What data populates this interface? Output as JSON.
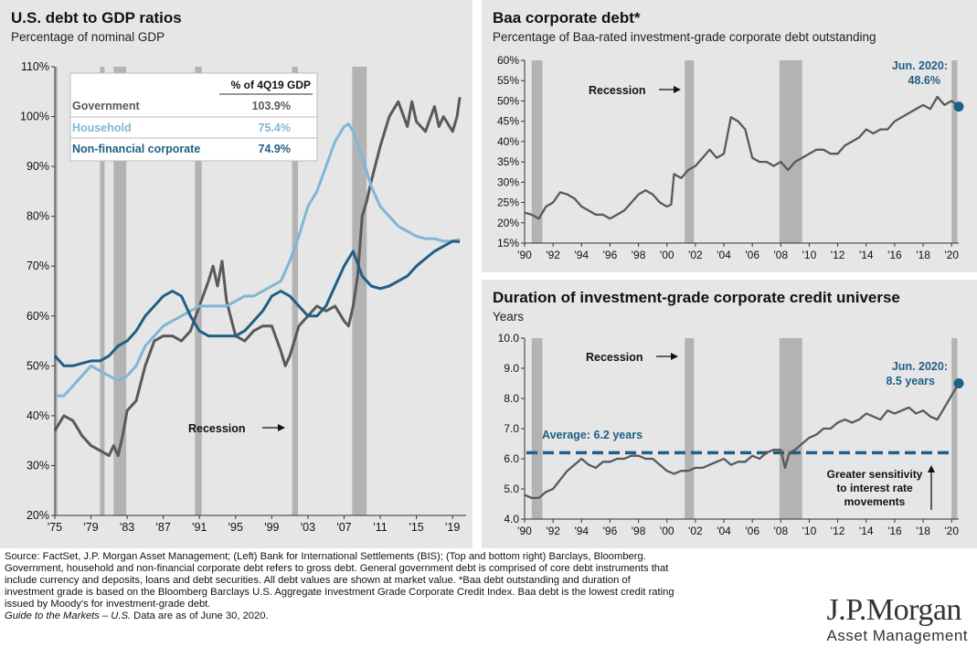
{
  "left": {
    "title": "U.S. debt to GDP ratios",
    "subtitle": "Percentage of nominal GDP",
    "recession_label": "Recession",
    "table": {
      "header": "% of 4Q19 GDP",
      "rows": [
        {
          "label": "Government",
          "value": "103.9%",
          "color": "#595959"
        },
        {
          "label": "Household",
          "value": "75.4%",
          "color": "#7fb7d4"
        },
        {
          "label": "Non-financial corporate",
          "value": "74.9%",
          "color": "#1f5f86"
        }
      ]
    }
  },
  "baa": {
    "title": "Baa corporate debt*",
    "subtitle": "Percentage of Baa-rated investment-grade corporate debt outstanding",
    "recession_label": "Recession",
    "annotation_line1": "Jun. 2020:",
    "annotation_line2": "48.6%"
  },
  "dur": {
    "title": "Duration of investment-grade corporate credit universe",
    "subtitle": "Years",
    "recession_label": "Recession",
    "annotation_line1": "Jun. 2020:",
    "annotation_line2": "8.5 years",
    "average_label": "Average: 6.2 years",
    "sensitivity_line1": "Greater sensitivity",
    "sensitivity_line2": "to interest rate",
    "sensitivity_line3": "movements"
  },
  "footer": {
    "line1": "Source: FactSet, J.P. Morgan Asset Management; (Left) Bank for International Settlements (BIS); (Top and bottom right) Barclays, Bloomberg.",
    "line2": "Government, household and non-financial corporate debt refers to gross debt. General government debt is comprised of core debt instruments that",
    "line3": "include currency and deposits, loans and debt securities. All debt values are shown at market value. *Baa debt outstanding and duration of",
    "line4": "investment grade is based on the Bloomberg Barclays U.S. Aggregate Investment Grade Corporate Credit Index. Baa debt is the lowest credit rating",
    "line5": "issued by Moody's for investment-grade debt.",
    "line6_italic": "Guide to the Markets – U.S.",
    "line6_rest": " Data are as of June 30, 2020."
  },
  "logo": {
    "line1": "J.P.Morgan",
    "line2": "Asset Management"
  },
  "chart_data": [
    {
      "id": "debt_to_gdp",
      "type": "line",
      "title": "U.S. debt to GDP ratios",
      "ylabel": "Percentage of nominal GDP",
      "xlim": [
        1975,
        2020.5
      ],
      "ylim": [
        20,
        110
      ],
      "yticks": [
        20,
        30,
        40,
        50,
        60,
        70,
        80,
        90,
        100,
        110
      ],
      "ytick_labels": [
        "20%",
        "30%",
        "40%",
        "50%",
        "60%",
        "70%",
        "80%",
        "90%",
        "100%",
        "110%"
      ],
      "xticks": [
        1975,
        1979,
        1983,
        1987,
        1991,
        1995,
        1999,
        2003,
        2007,
        2011,
        2015,
        2019
      ],
      "xtick_labels": [
        "'75",
        "'79",
        "'83",
        "'87",
        "'91",
        "'95",
        "'99",
        "'03",
        "'07",
        "'11",
        "'15",
        "'19"
      ],
      "recessions": [
        [
          1975.0,
          1975.25
        ],
        [
          1980.0,
          1980.5
        ],
        [
          1981.5,
          1982.9
        ],
        [
          1990.5,
          1991.25
        ],
        [
          2001.25,
          2001.9
        ],
        [
          2007.9,
          2009.5
        ]
      ],
      "series": [
        {
          "name": "Government",
          "color": "#595959",
          "x": [
            1975,
            1976,
            1977,
            1978,
            1979,
            1980,
            1981,
            1981.5,
            1982,
            1982.5,
            1983,
            1984,
            1985,
            1986,
            1987,
            1988,
            1989,
            1990,
            1991,
            1992,
            1992.5,
            1993,
            1993.5,
            1994,
            1995,
            1996,
            1997,
            1998,
            1999,
            2000,
            2000.5,
            2001,
            2001.5,
            2002,
            2003,
            2004,
            2005,
            2006,
            2007,
            2007.5,
            2008,
            2008.5,
            2009,
            2009.5,
            2010,
            2011,
            2012,
            2013,
            2014,
            2014.5,
            2015,
            2016,
            2017,
            2017.5,
            2018,
            2019,
            2019.5,
            2019.8
          ],
          "y": [
            37,
            40,
            39,
            36,
            34,
            33,
            32,
            34,
            32,
            36,
            41,
            43,
            50,
            55,
            56,
            56,
            55,
            57,
            62,
            67,
            70,
            66,
            71,
            63,
            56,
            55,
            57,
            58,
            58,
            53,
            50,
            52,
            55,
            58,
            60,
            62,
            61,
            62,
            59,
            58,
            62,
            68,
            80,
            83,
            87,
            94,
            100,
            103,
            98,
            103,
            99,
            97,
            102,
            98,
            100,
            97,
            100,
            103.9
          ]
        },
        {
          "name": "Household",
          "color": "#7fb7d4",
          "x": [
            1975,
            1976,
            1977,
            1978,
            1979,
            1980,
            1981,
            1982,
            1983,
            1984,
            1985,
            1986,
            1987,
            1988,
            1989,
            1990,
            1991,
            1992,
            1993,
            1994,
            1995,
            1996,
            1997,
            1998,
            1999,
            2000,
            2001,
            2002,
            2003,
            2004,
            2005,
            2006,
            2007,
            2007.5,
            2008,
            2009,
            2010,
            2011,
            2012,
            2013,
            2014,
            2015,
            2016,
            2017,
            2018,
            2019,
            2019.8
          ],
          "y": [
            44,
            44,
            46,
            48,
            50,
            49,
            48,
            47,
            48,
            50,
            54,
            56,
            58,
            59,
            60,
            61,
            62,
            62,
            62,
            62,
            63,
            64,
            64,
            65,
            66,
            67,
            71,
            76,
            82,
            85,
            90,
            95,
            98,
            98.5,
            97,
            92,
            86,
            82,
            80,
            78,
            77,
            76,
            75.5,
            75.5,
            75,
            75,
            75.4
          ]
        },
        {
          "name": "Non-financial corporate",
          "color": "#1f5f86",
          "x": [
            1975,
            1976,
            1977,
            1978,
            1979,
            1980,
            1981,
            1982,
            1983,
            1984,
            1985,
            1986,
            1987,
            1988,
            1989,
            1990,
            1991,
            1992,
            1993,
            1994,
            1995,
            1996,
            1997,
            1998,
            1999,
            2000,
            2001,
            2002,
            2003,
            2004,
            2005,
            2006,
            2007,
            2008,
            2009,
            2010,
            2011,
            2012,
            2013,
            2014,
            2015,
            2016,
            2017,
            2018,
            2019,
            2019.8
          ],
          "y": [
            52,
            50,
            50,
            50.5,
            51,
            51,
            52,
            54,
            55,
            57,
            60,
            62,
            64,
            65,
            64,
            60,
            57,
            56,
            56,
            56,
            56,
            57,
            59,
            61,
            64,
            65,
            64,
            62,
            60,
            60,
            62,
            66,
            70,
            73,
            68,
            66,
            65.5,
            66,
            67,
            68,
            70,
            71.5,
            73,
            74,
            75,
            74.9
          ]
        }
      ]
    },
    {
      "id": "baa",
      "type": "line",
      "title": "Baa corporate debt*",
      "ylabel": "Percentage of Baa-rated investment-grade corporate debt outstanding",
      "xlim": [
        1990,
        2020.5
      ],
      "ylim": [
        15,
        60
      ],
      "yticks": [
        15,
        20,
        25,
        30,
        35,
        40,
        45,
        50,
        55,
        60
      ],
      "ytick_labels": [
        "15%",
        "20%",
        "25%",
        "30%",
        "35%",
        "40%",
        "45%",
        "50%",
        "55%",
        "60%"
      ],
      "xticks": [
        1990,
        1992,
        1994,
        1996,
        1998,
        2000,
        2002,
        2004,
        2006,
        2008,
        2010,
        2012,
        2014,
        2016,
        2018,
        2020
      ],
      "xtick_labels": [
        "'90",
        "'92",
        "'94",
        "'96",
        "'98",
        "'00",
        "'02",
        "'04",
        "'06",
        "'08",
        "'10",
        "'12",
        "'14",
        "'16",
        "'18",
        "'20"
      ],
      "recessions": [
        [
          1990.5,
          1991.25
        ],
        [
          2001.25,
          2001.9
        ],
        [
          2007.9,
          2009.5
        ],
        [
          2020.0,
          2020.4
        ]
      ],
      "series": [
        {
          "name": "Baa",
          "color": "#595959",
          "x": [
            1990,
            1990.5,
            1991,
            1991.5,
            1992,
            1992.5,
            1993,
            1993.5,
            1994,
            1994.5,
            1995,
            1995.5,
            1996,
            1996.5,
            1997,
            1997.5,
            1998,
            1998.5,
            1999,
            1999.5,
            2000,
            2000.3,
            2000.5,
            2001,
            2001.5,
            2002,
            2002.5,
            2003,
            2003.5,
            2004,
            2004.5,
            2005,
            2005.5,
            2006,
            2006.5,
            2007,
            2007.5,
            2008,
            2008.5,
            2009,
            2009.5,
            2010,
            2010.5,
            2011,
            2011.5,
            2012,
            2012.5,
            2013,
            2013.5,
            2014,
            2014.5,
            2015,
            2015.5,
            2016,
            2016.5,
            2017,
            2017.5,
            2018,
            2018.5,
            2019,
            2019.5,
            2020,
            2020.5
          ],
          "y": [
            22.5,
            22,
            21,
            24,
            25,
            27.5,
            27,
            26,
            24,
            23,
            22,
            22,
            21,
            22,
            23,
            25,
            27,
            28,
            27,
            25,
            24,
            24.5,
            32,
            31,
            33,
            34,
            36,
            38,
            36,
            37,
            46,
            45,
            43,
            36,
            35,
            35,
            34,
            35,
            33,
            35,
            36,
            37,
            38,
            38,
            37,
            37,
            39,
            40,
            41,
            43,
            42,
            43,
            43,
            45,
            46,
            47,
            48,
            49,
            48,
            51,
            49,
            50,
            48.6
          ]
        }
      ],
      "annotation": {
        "x": 2020.5,
        "y": 48.6,
        "text": "Jun. 2020: 48.6%"
      }
    },
    {
      "id": "duration",
      "type": "line",
      "title": "Duration of investment-grade corporate credit universe",
      "ylabel": "Years",
      "xlim": [
        1990,
        2020.5
      ],
      "ylim": [
        4.0,
        10.0
      ],
      "yticks": [
        4,
        5,
        6,
        7,
        8,
        9,
        10
      ],
      "ytick_labels": [
        "4.0",
        "5.0",
        "6.0",
        "7.0",
        "8.0",
        "9.0",
        "10.0"
      ],
      "xticks": [
        1990,
        1992,
        1994,
        1996,
        1998,
        2000,
        2002,
        2004,
        2006,
        2008,
        2010,
        2012,
        2014,
        2016,
        2018,
        2020
      ],
      "xtick_labels": [
        "'90",
        "'92",
        "'94",
        "'96",
        "'98",
        "'00",
        "'02",
        "'04",
        "'06",
        "'08",
        "'10",
        "'12",
        "'14",
        "'16",
        "'18",
        "'20"
      ],
      "recessions": [
        [
          1990.5,
          1991.25
        ],
        [
          2001.25,
          2001.9
        ],
        [
          2007.9,
          2009.5
        ],
        [
          2020.0,
          2020.4
        ]
      ],
      "average": 6.2,
      "series": [
        {
          "name": "Duration",
          "color": "#595959",
          "x": [
            1990,
            1990.5,
            1991,
            1991.5,
            1992,
            1992.5,
            1993,
            1993.5,
            1994,
            1994.5,
            1995,
            1995.5,
            1996,
            1996.5,
            1997,
            1997.5,
            1998,
            1998.5,
            1999,
            1999.5,
            2000,
            2000.5,
            2001,
            2001.5,
            2002,
            2002.5,
            2003,
            2003.5,
            2004,
            2004.5,
            2005,
            2005.5,
            2006,
            2006.5,
            2007,
            2007.5,
            2008,
            2008.3,
            2008.6,
            2009,
            2009.5,
            2010,
            2010.5,
            2011,
            2011.5,
            2012,
            2012.5,
            2013,
            2013.5,
            2014,
            2014.5,
            2015,
            2015.5,
            2016,
            2016.5,
            2017,
            2017.5,
            2018,
            2018.5,
            2019,
            2019.5,
            2020,
            2020.5
          ],
          "y": [
            4.8,
            4.7,
            4.7,
            4.9,
            5.0,
            5.3,
            5.6,
            5.8,
            6.0,
            5.8,
            5.7,
            5.9,
            5.9,
            6.0,
            6.0,
            6.1,
            6.1,
            6.0,
            6.0,
            5.8,
            5.6,
            5.5,
            5.6,
            5.6,
            5.7,
            5.7,
            5.8,
            5.9,
            6.0,
            5.8,
            5.9,
            5.9,
            6.1,
            6.0,
            6.2,
            6.3,
            6.3,
            5.7,
            6.2,
            6.3,
            6.5,
            6.7,
            6.8,
            7.0,
            7.0,
            7.2,
            7.3,
            7.2,
            7.3,
            7.5,
            7.4,
            7.3,
            7.6,
            7.5,
            7.6,
            7.7,
            7.5,
            7.6,
            7.4,
            7.3,
            7.7,
            8.1,
            8.5
          ]
        }
      ],
      "annotation": {
        "x": 2020.5,
        "y": 8.5,
        "text": "Jun. 2020: 8.5 years"
      }
    }
  ]
}
